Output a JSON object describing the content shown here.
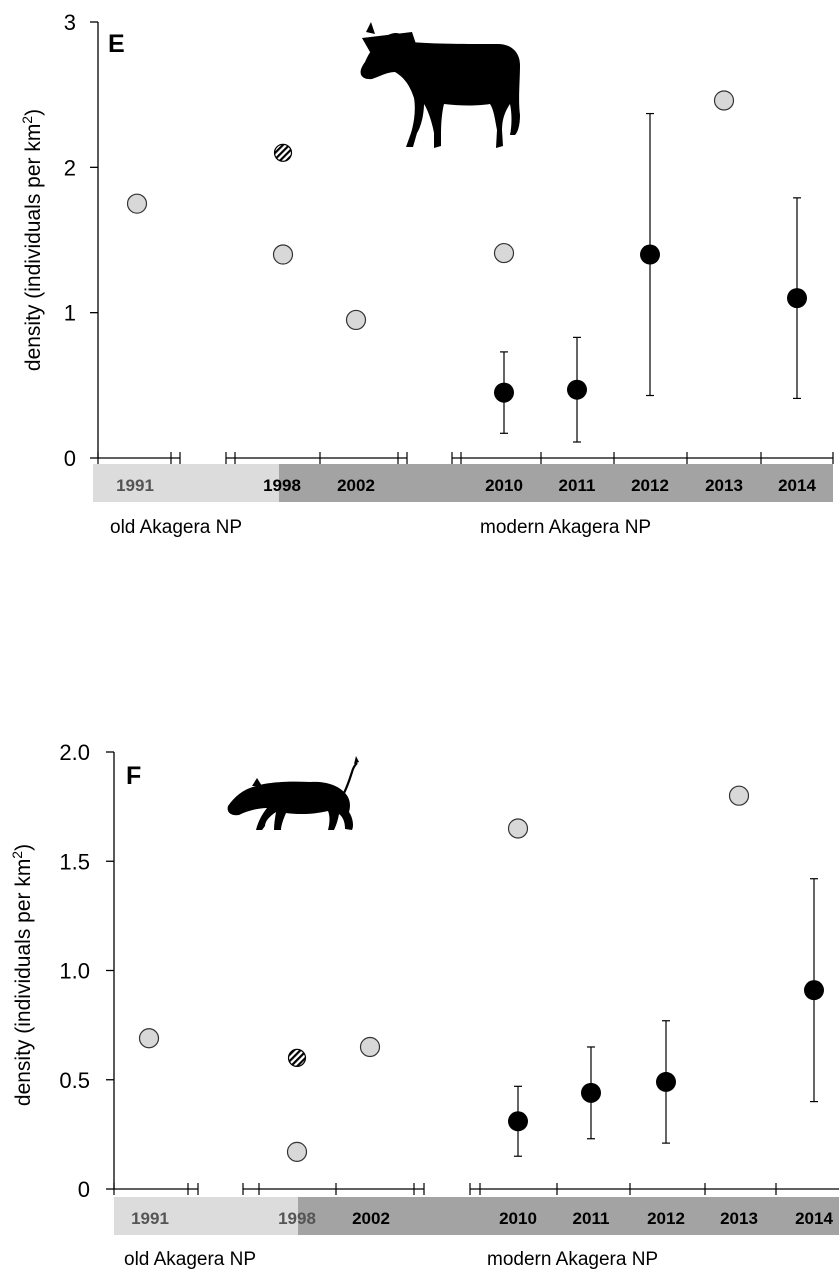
{
  "chart_data": [
    {
      "type": "scatter",
      "panel_label": "E",
      "animal_icon": "zebra-silhouette-icon",
      "ylabel": "density (individuals per km",
      "ylabel_sup": "2",
      "ylabel_close": ")",
      "ylim": [
        0,
        3
      ],
      "yticks": [
        "0",
        "1",
        "2",
        "3"
      ],
      "ytick_values": [
        0,
        1,
        2,
        3
      ],
      "years": [
        "1991",
        "1998",
        "2002",
        "2010",
        "2011",
        "2012",
        "2013",
        "2014"
      ],
      "periods": [
        "old Akagera NP",
        "modern Akagera NP"
      ],
      "series": [
        {
          "style": "grey",
          "points": [
            {
              "year": "1991",
              "y": 1.75
            },
            {
              "year": "1998",
              "y": 1.4
            },
            {
              "year": "2002",
              "y": 0.95
            },
            {
              "year": "2010",
              "y": 1.41
            },
            {
              "year": "2013",
              "y": 2.46
            }
          ]
        },
        {
          "style": "hatched",
          "points": [
            {
              "year": "1998",
              "y": 2.1
            }
          ]
        },
        {
          "style": "black",
          "points": [
            {
              "year": "2010",
              "y": 0.45,
              "low": 0.17,
              "high": 0.73
            },
            {
              "year": "2011",
              "y": 0.47,
              "low": 0.11,
              "high": 0.83
            },
            {
              "year": "2012",
              "y": 1.4,
              "low": 0.43,
              "high": 2.37
            },
            {
              "year": "2014",
              "y": 1.1,
              "low": 0.41,
              "high": 1.79
            }
          ]
        }
      ]
    },
    {
      "type": "scatter",
      "panel_label": "F",
      "animal_icon": "warthog-silhouette-icon",
      "ylabel": "density (individuals per km",
      "ylabel_sup": "2",
      "ylabel_close": ")",
      "ylim": [
        0,
        2
      ],
      "yticks": [
        "0",
        "0.5",
        "1.0",
        "1.5",
        "2.0"
      ],
      "ytick_values": [
        0,
        0.5,
        1.0,
        1.5,
        2.0
      ],
      "years": [
        "1991",
        "1998",
        "2002",
        "2010",
        "2011",
        "2012",
        "2013",
        "2014"
      ],
      "periods": [
        "old Akagera NP",
        "modern Akagera NP"
      ],
      "series": [
        {
          "style": "grey",
          "points": [
            {
              "year": "1991",
              "y": 0.69
            },
            {
              "year": "1998",
              "y": 0.17
            },
            {
              "year": "2002",
              "y": 0.65
            },
            {
              "year": "2010",
              "y": 1.65
            },
            {
              "year": "2013",
              "y": 1.8
            }
          ]
        },
        {
          "style": "hatched",
          "points": [
            {
              "year": "1998",
              "y": 0.6
            }
          ]
        },
        {
          "style": "black",
          "points": [
            {
              "year": "2010",
              "y": 0.31,
              "low": 0.15,
              "high": 0.47
            },
            {
              "year": "2011",
              "y": 0.44,
              "low": 0.23,
              "high": 0.65
            },
            {
              "year": "2012",
              "y": 0.49,
              "low": 0.21,
              "high": 0.77
            },
            {
              "year": "2014",
              "y": 0.91,
              "low": 0.4,
              "high": 1.42
            }
          ]
        }
      ]
    }
  ]
}
